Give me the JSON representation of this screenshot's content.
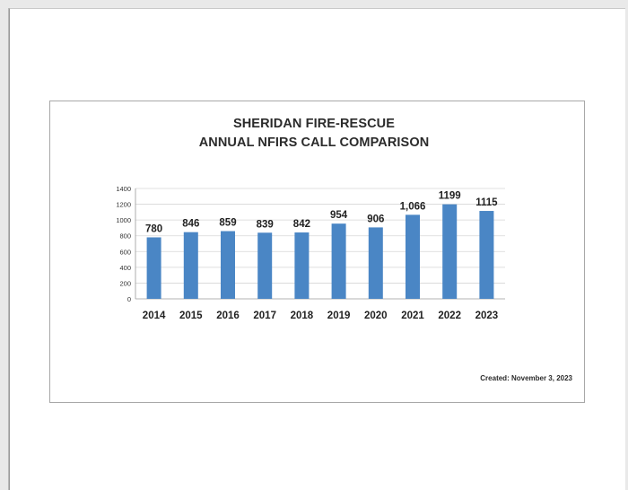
{
  "chart_data": {
    "type": "bar",
    "title": "SHERIDAN FIRE-RESCUE",
    "subtitle": "ANNUAL NFIRS CALL COMPARISON",
    "categories": [
      "2014",
      "2015",
      "2016",
      "2017",
      "2018",
      "2019",
      "2020",
      "2021",
      "2022",
      "2023"
    ],
    "values": [
      780,
      846,
      859,
      839,
      842,
      954,
      906,
      1066,
      1199,
      1115
    ],
    "data_labels": [
      "780",
      "846",
      "859",
      "839",
      "842",
      "954",
      "906",
      "1,066",
      "1199",
      "1115"
    ],
    "xlabel": "",
    "ylabel": "",
    "ylim": [
      0,
      1400
    ],
    "yticks": [
      0,
      200,
      400,
      600,
      800,
      1000,
      1200,
      1400
    ],
    "grid": true,
    "legend": "none",
    "bar_color": "#4a86c5"
  },
  "footer": {
    "created": "Created:  November 3, 2023"
  }
}
